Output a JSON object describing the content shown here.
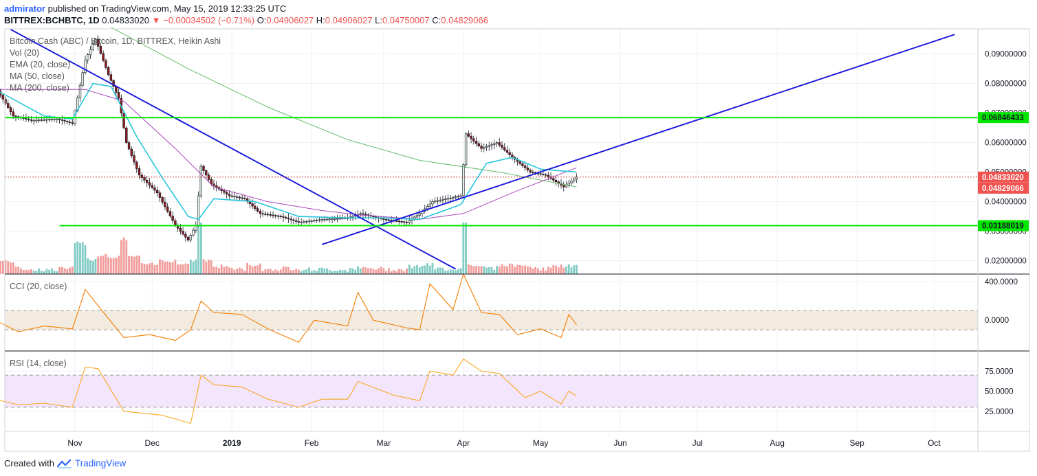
{
  "header": {
    "user": "admirator",
    "published": "published on TradingView.com, May 15, 2019 12:33:25 UTC",
    "symbol": "BITTREX:BCHBTC, 1D",
    "last": "0.04833020",
    "change_arrow": "▼",
    "change": "−0.00034502 (−0.71%)",
    "open_k": "O:",
    "open": "0.04906027",
    "high_k": "H:",
    "high": "0.04906027",
    "low_k": "L:",
    "low": "0.04750007",
    "close_k": "C:",
    "close": "0.04829066"
  },
  "legend": {
    "title": "Bitcoin Cash (ABC) / Bitcoin, 1D, BITTREX, Heikin Ashi",
    "vol": "Vol (20)",
    "ema": "EMA (20, close)",
    "ma50": "MA (50, close)",
    "ma200": "MA (200, close)",
    "cci": "CCI (20, close)",
    "rsi": "RSI (14, close)"
  },
  "footer": {
    "created": "Created with",
    "brand": "TradingView"
  },
  "colors": {
    "up": "#26a69a",
    "down": "#ef5350",
    "ema": "#26c6da",
    "ma50": "#ab47bc",
    "ma200": "#66bb6a",
    "trend": "#1e1edc",
    "level": "#00e600",
    "cci": "#f57c00",
    "rsi": "#f9a825",
    "cci_band": "#f3ebe0",
    "rsi_band": "#f3e5fc"
  },
  "chart_data": [
    {
      "type": "candlestick",
      "name": "price",
      "x_labels": [
        "Nov",
        "Dec",
        "2019",
        "Feb",
        "Mar",
        "Apr",
        "May",
        "Jun",
        "Jul",
        "Aug",
        "Sep",
        "Oct"
      ],
      "y_ticks": [
        "0.09000000",
        "0.08000000",
        "0.07000000",
        "0.06000000",
        "0.05000000",
        "0.04000000",
        "0.03000000",
        "0.02000000"
      ],
      "ylim": [
        0.0155,
        0.0985
      ],
      "price_tags": [
        {
          "value": "0.06846433",
          "level": 0.06846433,
          "kind": "level"
        },
        {
          "value": "0.04833020",
          "level": 0.0483302,
          "kind": "last"
        },
        {
          "value": "0.04829066",
          "level": 0.04829066,
          "kind": "close"
        },
        {
          "value": "0.03188019",
          "level": 0.03188019,
          "kind": "level"
        }
      ],
      "horizontal_levels": [
        0.06846433,
        0.03188019
      ],
      "last_price": 0.0483302,
      "trendlines": [
        {
          "from": [
            "2018-10-07",
            0.0983
          ],
          "to": [
            "2019-03-29",
            0.0172
          ]
        },
        {
          "from": [
            "2019-02-05",
            0.0255
          ],
          "to": [
            "2019-10-09",
            0.0966
          ]
        }
      ],
      "close_path": [
        [
          "2018-10-01",
          0.079
        ],
        [
          "2018-10-08",
          0.069
        ],
        [
          "2018-10-15",
          0.0675
        ],
        [
          "2018-10-25",
          0.068
        ],
        [
          "2018-10-31",
          0.0665
        ],
        [
          "2018-11-05",
          0.088
        ],
        [
          "2018-11-09",
          0.095
        ],
        [
          "2018-11-14",
          0.083
        ],
        [
          "2018-11-18",
          0.075
        ],
        [
          "2018-11-21",
          0.06
        ],
        [
          "2018-11-26",
          0.049
        ],
        [
          "2018-12-03",
          0.043
        ],
        [
          "2018-12-10",
          0.032
        ],
        [
          "2018-12-15",
          0.027
        ],
        [
          "2018-12-18",
          0.032
        ],
        [
          "2018-12-20",
          0.052
        ],
        [
          "2018-12-24",
          0.046
        ],
        [
          "2018-12-31",
          0.042
        ],
        [
          "2019-01-06",
          0.041
        ],
        [
          "2019-01-12",
          0.036
        ],
        [
          "2019-01-20",
          0.035
        ],
        [
          "2019-01-27",
          0.033
        ],
        [
          "2019-02-05",
          0.034
        ],
        [
          "2019-02-15",
          0.0345
        ],
        [
          "2019-02-20",
          0.036
        ],
        [
          "2019-03-01",
          0.034
        ],
        [
          "2019-03-10",
          0.033
        ],
        [
          "2019-03-15",
          0.036
        ],
        [
          "2019-03-20",
          0.04
        ],
        [
          "2019-03-31",
          0.042
        ],
        [
          "2019-04-02",
          0.063
        ],
        [
          "2019-04-08",
          0.058
        ],
        [
          "2019-04-14",
          0.06
        ],
        [
          "2019-04-20",
          0.055
        ],
        [
          "2019-04-27",
          0.05
        ],
        [
          "2019-05-03",
          0.049
        ],
        [
          "2019-05-10",
          0.045
        ],
        [
          "2019-05-15",
          0.0483
        ]
      ],
      "ema_20": [
        [
          "2018-10-01",
          0.078
        ],
        [
          "2018-10-20",
          0.069
        ],
        [
          "2018-10-31",
          0.068
        ],
        [
          "2018-11-08",
          0.08
        ],
        [
          "2018-11-15",
          0.079
        ],
        [
          "2018-11-25",
          0.062
        ],
        [
          "2018-12-05",
          0.048
        ],
        [
          "2018-12-15",
          0.035
        ],
        [
          "2018-12-19",
          0.034
        ],
        [
          "2018-12-25",
          0.041
        ],
        [
          "2019-01-10",
          0.04
        ],
        [
          "2019-01-27",
          0.035
        ],
        [
          "2019-02-15",
          0.0345
        ],
        [
          "2019-03-01",
          0.0345
        ],
        [
          "2019-03-15",
          0.034
        ],
        [
          "2019-03-31",
          0.039
        ],
        [
          "2019-04-10",
          0.053
        ],
        [
          "2019-04-20",
          0.055
        ],
        [
          "2019-05-01",
          0.051
        ],
        [
          "2019-05-15",
          0.05
        ]
      ],
      "ma_50": [
        [
          "2018-10-01",
          0.078
        ],
        [
          "2018-11-05",
          0.078
        ],
        [
          "2018-11-20",
          0.074
        ],
        [
          "2018-12-10",
          0.058
        ],
        [
          "2018-12-25",
          0.045
        ],
        [
          "2019-01-15",
          0.04
        ],
        [
          "2019-02-05",
          0.037
        ],
        [
          "2019-02-20",
          0.0355
        ],
        [
          "2019-03-15",
          0.034
        ],
        [
          "2019-04-01",
          0.036
        ],
        [
          "2019-04-20",
          0.043
        ],
        [
          "2019-05-15",
          0.0515
        ]
      ],
      "ma_200": [
        [
          "2018-11-15",
          0.099
        ],
        [
          "2018-12-15",
          0.085
        ],
        [
          "2019-01-15",
          0.072
        ],
        [
          "2019-02-15",
          0.061
        ],
        [
          "2019-03-15",
          0.054
        ],
        [
          "2019-04-15",
          0.05
        ],
        [
          "2019-05-15",
          0.045
        ]
      ]
    },
    {
      "type": "line",
      "name": "CCI",
      "y_ticks": [
        "400.0000",
        "0.0000"
      ],
      "ylim": [
        -320,
        480
      ],
      "band": [
        100,
        -100
      ],
      "points": [
        [
          "2018-10-01",
          0
        ],
        [
          "2018-10-10",
          -120
        ],
        [
          "2018-10-20",
          -60
        ],
        [
          "2018-10-31",
          -90
        ],
        [
          "2018-11-05",
          320
        ],
        [
          "2018-11-10",
          150
        ],
        [
          "2018-11-20",
          -180
        ],
        [
          "2018-11-30",
          -150
        ],
        [
          "2018-12-10",
          -210
        ],
        [
          "2018-12-16",
          -100
        ],
        [
          "2018-12-20",
          200
        ],
        [
          "2018-12-25",
          80
        ],
        [
          "2019-01-05",
          60
        ],
        [
          "2019-01-15",
          -90
        ],
        [
          "2019-01-27",
          -230
        ],
        [
          "2019-02-02",
          0
        ],
        [
          "2019-02-15",
          -60
        ],
        [
          "2019-02-19",
          290
        ],
        [
          "2019-02-25",
          0
        ],
        [
          "2019-03-10",
          -80
        ],
        [
          "2019-03-15",
          -100
        ],
        [
          "2019-03-19",
          380
        ],
        [
          "2019-03-28",
          110
        ],
        [
          "2019-04-01",
          480
        ],
        [
          "2019-04-08",
          80
        ],
        [
          "2019-04-15",
          60
        ],
        [
          "2019-04-22",
          -150
        ],
        [
          "2019-05-01",
          -90
        ],
        [
          "2019-05-09",
          -180
        ],
        [
          "2019-05-12",
          60
        ],
        [
          "2019-05-15",
          -50
        ]
      ]
    },
    {
      "type": "line",
      "name": "RSI",
      "y_ticks": [
        "75.0000",
        "50.0000",
        "25.0000"
      ],
      "ylim": [
        0,
        100
      ],
      "band": [
        70,
        30
      ],
      "points": [
        [
          "2018-10-01",
          40
        ],
        [
          "2018-10-10",
          33
        ],
        [
          "2018-10-20",
          35
        ],
        [
          "2018-10-31",
          30
        ],
        [
          "2018-11-05",
          80
        ],
        [
          "2018-11-10",
          78
        ],
        [
          "2018-11-20",
          25
        ],
        [
          "2018-12-05",
          20
        ],
        [
          "2018-12-16",
          10
        ],
        [
          "2018-12-20",
          70
        ],
        [
          "2018-12-25",
          58
        ],
        [
          "2019-01-05",
          55
        ],
        [
          "2019-01-15",
          40
        ],
        [
          "2019-01-27",
          30
        ],
        [
          "2019-02-05",
          40
        ],
        [
          "2019-02-15",
          40
        ],
        [
          "2019-02-19",
          62
        ],
        [
          "2019-03-05",
          45
        ],
        [
          "2019-03-15",
          38
        ],
        [
          "2019-03-19",
          75
        ],
        [
          "2019-03-28",
          70
        ],
        [
          "2019-04-01",
          90
        ],
        [
          "2019-04-08",
          75
        ],
        [
          "2019-04-15",
          72
        ],
        [
          "2019-04-25",
          42
        ],
        [
          "2019-05-01",
          50
        ],
        [
          "2019-05-09",
          34
        ],
        [
          "2019-05-12",
          50
        ],
        [
          "2019-05-15",
          44
        ]
      ]
    }
  ]
}
